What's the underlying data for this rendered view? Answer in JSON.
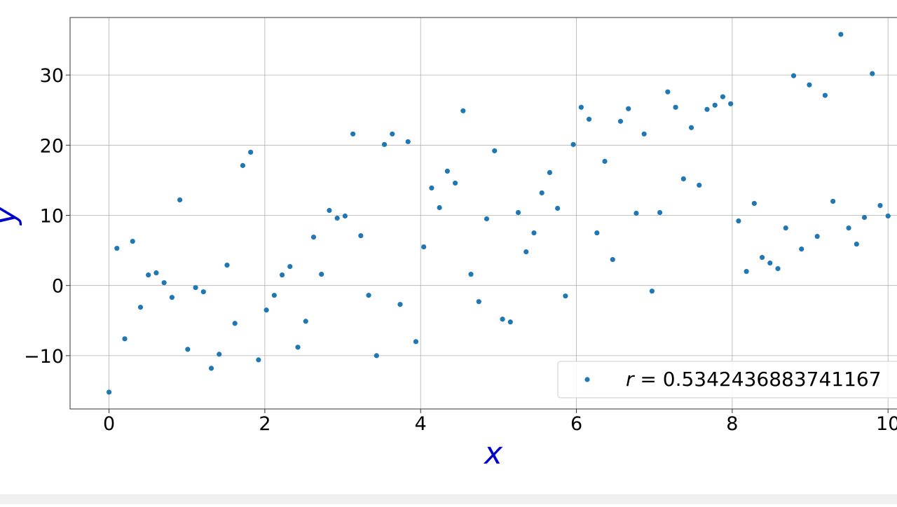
{
  "chart_data": {
    "type": "scatter",
    "title": "",
    "xlabel": "x",
    "ylabel": "y",
    "xlim": [
      -0.5,
      10.25
    ],
    "ylim": [
      -17.6,
      38.2
    ],
    "xticks": [
      0,
      2,
      4,
      6,
      8,
      10
    ],
    "yticks": [
      -10,
      0,
      10,
      20,
      30
    ],
    "ytick_labels": [
      "−10",
      "0",
      "10",
      "20",
      "30"
    ],
    "grid": true,
    "legend_position": "lower-right",
    "series": [
      {
        "name": "r = 0.5342436883741167",
        "color": "#1f77b4",
        "x": [
          0.0,
          0.101,
          0.202,
          0.303,
          0.404,
          0.505,
          0.606,
          0.707,
          0.808,
          0.909,
          1.01,
          1.111,
          1.212,
          1.313,
          1.414,
          1.515,
          1.616,
          1.717,
          1.818,
          1.919,
          2.02,
          2.121,
          2.222,
          2.323,
          2.424,
          2.525,
          2.626,
          2.727,
          2.828,
          2.929,
          3.03,
          3.131,
          3.232,
          3.333,
          3.434,
          3.535,
          3.636,
          3.737,
          3.838,
          3.939,
          4.04,
          4.141,
          4.242,
          4.343,
          4.444,
          4.545,
          4.646,
          4.747,
          4.848,
          4.949,
          5.051,
          5.152,
          5.253,
          5.354,
          5.455,
          5.556,
          5.657,
          5.758,
          5.859,
          5.96,
          6.061,
          6.162,
          6.263,
          6.364,
          6.465,
          6.566,
          6.667,
          6.768,
          6.869,
          6.97,
          7.071,
          7.172,
          7.273,
          7.374,
          7.475,
          7.576,
          7.677,
          7.778,
          7.879,
          7.98,
          8.081,
          8.182,
          8.283,
          8.384,
          8.485,
          8.586,
          8.687,
          8.788,
          8.889,
          8.99,
          9.091,
          9.192,
          9.293,
          9.394,
          9.495,
          9.596,
          9.697,
          9.798,
          9.899,
          10.0
        ],
        "y": [
          -15.2,
          5.3,
          -7.6,
          6.3,
          -3.1,
          1.5,
          1.8,
          0.4,
          -1.7,
          12.2,
          -9.1,
          -0.3,
          -0.9,
          -11.8,
          -9.8,
          2.9,
          -5.4,
          17.1,
          19.0,
          -10.6,
          -3.5,
          -1.4,
          1.5,
          2.7,
          -8.8,
          -5.1,
          6.9,
          1.6,
          10.7,
          9.6,
          9.9,
          21.6,
          7.1,
          -1.4,
          -10.0,
          20.1,
          21.6,
          -2.7,
          20.5,
          -8.0,
          5.5,
          13.9,
          11.1,
          16.3,
          14.6,
          24.9,
          1.6,
          -2.3,
          9.5,
          19.2,
          -4.8,
          -5.2,
          10.4,
          4.8,
          7.5,
          13.2,
          16.1,
          11.0,
          -1.5,
          20.1,
          25.4,
          23.7,
          7.5,
          17.7,
          3.7,
          23.4,
          25.2,
          10.3,
          21.6,
          -0.8,
          10.4,
          27.6,
          25.4,
          15.2,
          22.5,
          14.3,
          25.1,
          25.7,
          26.9,
          25.9,
          9.2,
          2.0,
          11.7,
          4.0,
          3.2,
          2.4,
          8.2,
          29.9,
          5.2,
          28.6,
          7.0,
          27.1,
          12.0,
          35.8,
          8.2,
          5.9,
          9.7,
          30.2,
          11.4,
          9.9
        ]
      }
    ]
  },
  "legend": {
    "label": "r = 0.5342436883741167",
    "label_italic": "r",
    "label_rest": " = 0.5342436883741167"
  }
}
